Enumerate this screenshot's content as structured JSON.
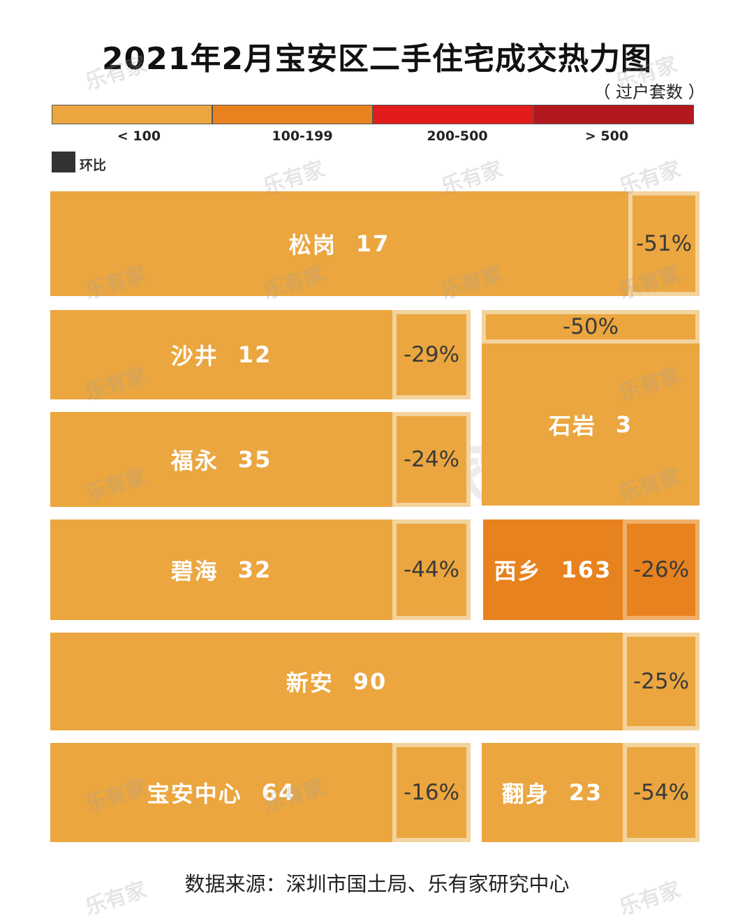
{
  "title": "2021年2月宝安区二手住宅成交热力图",
  "unit": "（ 过户套数 ）",
  "legend": {
    "bins": [
      {
        "label": "< 100",
        "color": "#EBA63F"
      },
      {
        "label": "100-199",
        "color": "#E8821E"
      },
      {
        "label": "200-500",
        "color": "#E21B1B"
      },
      {
        "label": "> 500",
        "color": "#B3181F"
      }
    ],
    "mom_key_label": "环比"
  },
  "chart_data": {
    "type": "heatmap",
    "title": "2021年2月宝安区二手住宅成交热力图",
    "unit": "过户套数",
    "series": [
      {
        "district": "松岗",
        "value": 17,
        "mom": "-51%",
        "bin": "< 100"
      },
      {
        "district": "沙井",
        "value": 12,
        "mom": "-29%",
        "bin": "< 100"
      },
      {
        "district": "石岩",
        "value": 3,
        "mom": "-50%",
        "bin": "< 100"
      },
      {
        "district": "福永",
        "value": 35,
        "mom": "-24%",
        "bin": "< 100"
      },
      {
        "district": "碧海",
        "value": 32,
        "mom": "-44%",
        "bin": "< 100"
      },
      {
        "district": "西乡",
        "value": 163,
        "mom": "-26%",
        "bin": "100-199"
      },
      {
        "district": "新安",
        "value": 90,
        "mom": "-25%",
        "bin": "< 100"
      },
      {
        "district": "宝安中心",
        "value": 64,
        "mom": "-16%",
        "bin": "< 100"
      },
      {
        "district": "翻身",
        "value": 23,
        "mom": "-54%",
        "bin": "< 100"
      }
    ]
  },
  "watermark": {
    "text": "乐有家",
    "big_text": "乐有家"
  },
  "source": "数据来源：深圳市国土局、乐有家研究中心"
}
